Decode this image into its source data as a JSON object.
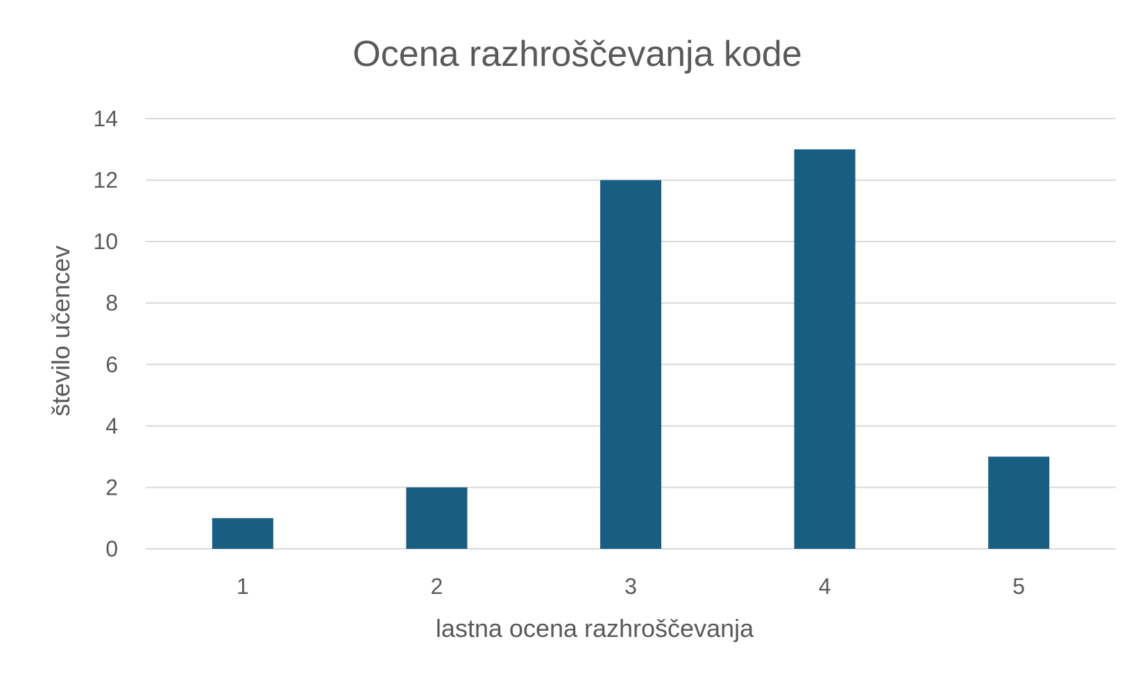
{
  "chart_data": {
    "type": "bar",
    "title": "Ocena razhroščevanja kode",
    "xlabel": "lastna ocena razhroščevanja",
    "ylabel": "število učencev",
    "categories": [
      "1",
      "2",
      "3",
      "4",
      "5"
    ],
    "values": [
      1,
      2,
      12,
      13,
      3
    ],
    "ylim": [
      0,
      14
    ],
    "yticks": [
      0,
      2,
      4,
      6,
      8,
      10,
      12,
      14
    ],
    "grid": true,
    "legend": "none",
    "bar_color": "#175E82",
    "grid_color": "#D9D9D9",
    "text_color": "#595959"
  }
}
